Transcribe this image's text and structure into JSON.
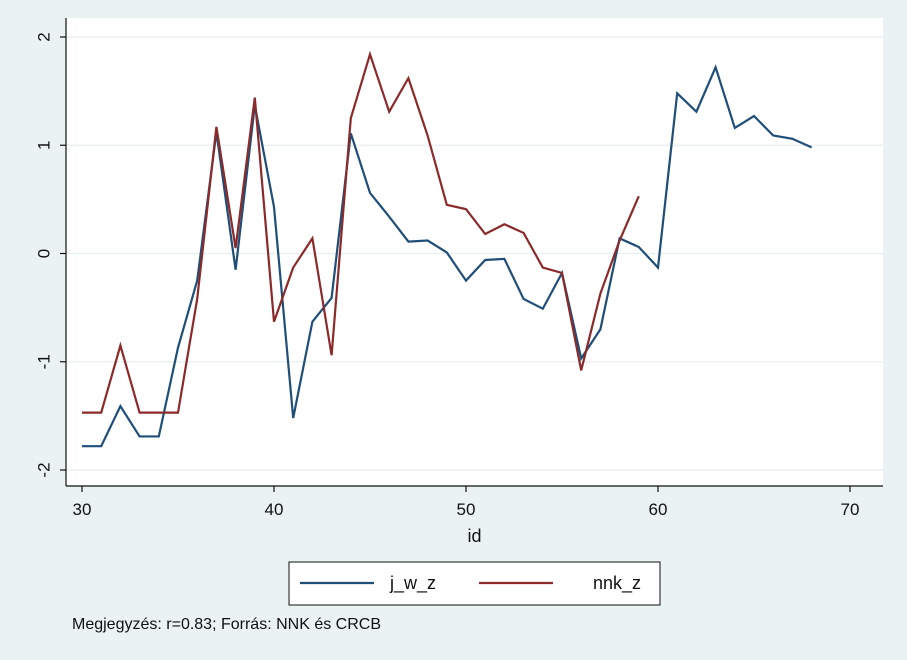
{
  "chart_data": {
    "type": "line",
    "title": "",
    "xlabel": "id",
    "ylabel": "",
    "xlim": [
      30,
      70
    ],
    "ylim": [
      -2,
      2
    ],
    "x_ticks": [
      30,
      40,
      50,
      60,
      70
    ],
    "y_ticks": [
      -2,
      -1,
      0,
      1,
      2
    ],
    "x_tick_labels": [
      "30",
      "40",
      "50",
      "60",
      "70"
    ],
    "y_tick_labels": [
      "-2",
      "-1",
      "0",
      "1",
      "2"
    ],
    "grid": true,
    "legend_position": "bottom",
    "series": [
      {
        "name": "j_w_z",
        "color": "#1f4e79",
        "x": [
          30,
          31,
          32,
          33,
          34,
          35,
          36,
          37,
          38,
          39,
          40,
          41,
          42,
          43,
          44,
          45,
          46,
          47,
          48,
          49,
          50,
          51,
          52,
          53,
          54,
          55,
          56,
          57,
          58,
          59,
          60,
          61,
          62,
          63,
          64,
          65,
          66,
          67,
          68
        ],
        "y": [
          -1.78,
          -1.78,
          -1.41,
          -1.69,
          -1.69,
          -0.87,
          -0.25,
          1.12,
          -0.15,
          1.37,
          0.43,
          -1.52,
          -0.63,
          -0.41,
          1.11,
          0.56,
          0.34,
          0.11,
          0.12,
          0.01,
          -0.25,
          -0.06,
          -0.05,
          -0.42,
          -0.51,
          -0.18,
          -0.97,
          -0.7,
          0.14,
          0.06,
          -0.13,
          1.48,
          1.31,
          1.72,
          1.16,
          1.27,
          1.09,
          1.06,
          0.98
        ]
      },
      {
        "name": "nnk_z",
        "color": "#8b2a2a",
        "x": [
          30,
          31,
          32,
          33,
          34,
          35,
          36,
          37,
          38,
          39,
          40,
          41,
          42,
          43,
          44,
          45,
          46,
          47,
          48,
          49,
          50,
          51,
          52,
          53,
          54,
          55,
          56,
          57,
          58,
          59
        ],
        "y": [
          -1.47,
          -1.47,
          -0.85,
          -1.47,
          -1.47,
          -1.47,
          -0.42,
          1.17,
          0.05,
          1.44,
          -0.63,
          -0.13,
          0.14,
          -0.94,
          1.25,
          1.84,
          1.31,
          1.62,
          1.09,
          0.45,
          0.41,
          0.18,
          0.27,
          0.19,
          -0.13,
          -0.18,
          -1.08,
          -0.37,
          0.12,
          0.53
        ]
      }
    ]
  },
  "note": "Megjegyzés: r=0.83; Forrás: NNK és CRCB"
}
